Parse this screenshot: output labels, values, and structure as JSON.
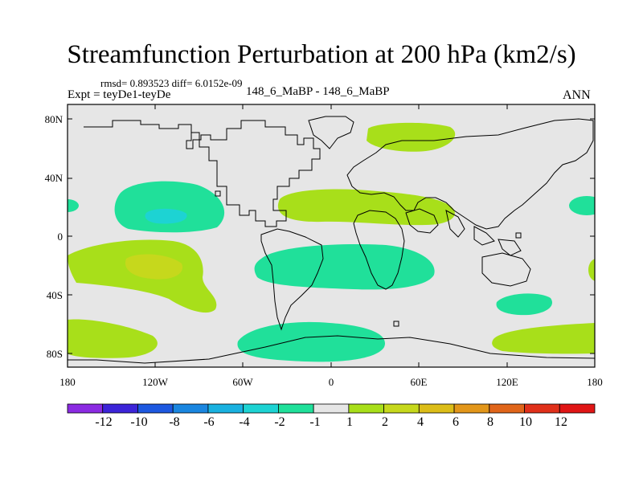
{
  "title": "Streamfunction Perturbation at 200 hPa (km2/s)",
  "stats": "rmsd= 0.893523 diff= 6.0152e-09",
  "left_label": "Expt = teyDe1-teyDe",
  "center_label": "148_6_MaBP - 148_6_MaBP",
  "right_label": "ANN",
  "lat_ticks": [
    "80N",
    "40N",
    "0",
    "40S",
    "80S"
  ],
  "lon_ticks": [
    "180",
    "120W",
    "60W",
    "0",
    "60E",
    "120E",
    "180"
  ],
  "colorbar": {
    "labels": [
      "-12",
      "-10",
      "-8",
      "-6",
      "-4",
      "-2",
      "-1",
      "1",
      "2",
      "4",
      "6",
      "8",
      "10",
      "12"
    ],
    "colors": [
      "#8b2be2",
      "#3c24d8",
      "#1d58e0",
      "#1a86e0",
      "#19b1e0",
      "#1dd3d3",
      "#20e09a",
      "#e6e6e6",
      "#a8df1a",
      "#c6d81c",
      "#dcbd18",
      "#e2961a",
      "#e0651a",
      "#e0301a",
      "#e01515"
    ]
  },
  "colors": {
    "background_field": "#e6e6e6",
    "neg_1_2": "#20e09a",
    "neg_2_4": "#1dd3d3",
    "pos_1_2": "#a8df1a",
    "pos_2_4": "#c6d81c"
  }
}
